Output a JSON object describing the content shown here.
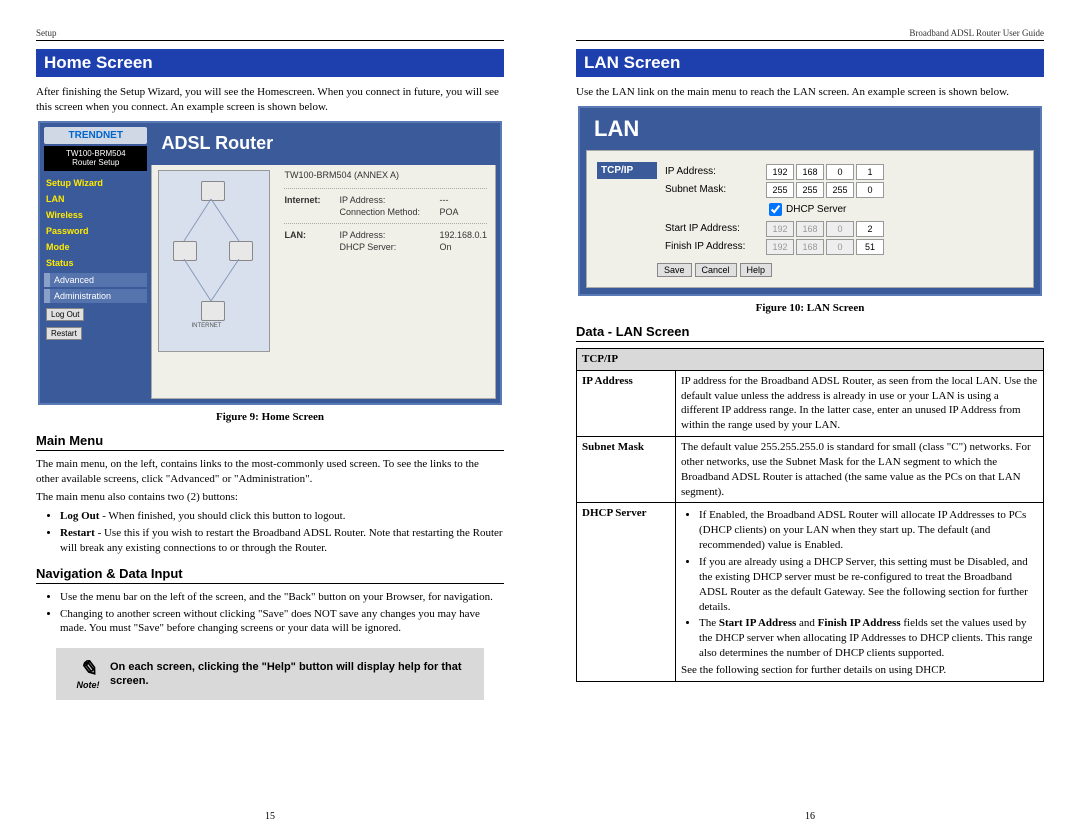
{
  "left": {
    "header": "Setup",
    "pageNum": "15",
    "banner": "Home Screen",
    "intro": "After finishing the Setup Wizard, you will see the Homescreen. When you connect in future, you will see this screen when you connect. An example screen is shown below.",
    "caption": "Figure 9: Home Screen",
    "ss1": {
      "brand": "TRENDNET",
      "model": "TW100-BRM504",
      "modelSub": "Router Setup",
      "nav": [
        "Setup Wizard",
        "LAN",
        "Wireless",
        "Password",
        "Mode",
        "Status"
      ],
      "groups": [
        "Advanced",
        "Administration"
      ],
      "logout": "Log Out",
      "restart": "Restart",
      "title": "ADSL Router",
      "deviceLine": "TW100-BRM504 (ANNEX A)",
      "rows": [
        {
          "g": "Internet:",
          "l": "IP Address:",
          "v": "---"
        },
        {
          "g": "",
          "l": "Connection Method:",
          "v": "POA"
        },
        {
          "g": "LAN:",
          "l": "IP Address:",
          "v": "192.168.0.1"
        },
        {
          "g": "",
          "l": "DHCP Server:",
          "v": "On"
        }
      ],
      "internetLabel": "INTERNET"
    },
    "mainMenu": {
      "heading": "Main Menu",
      "p1": "The main menu, on the left, contains links to the most-commonly used screen. To see the links to the other available screens, click \"Advanced\" or \"Administration\".",
      "p2": "The main menu also contains two (2) buttons:",
      "bullets": [
        {
          "b": "Log Out",
          "t": " - When finished, you should click this button to logout."
        },
        {
          "b": "Restart",
          "t": " - Use this if you wish to restart the Broadband ADSL Router. Note that restarting the Router will break any existing connections to or through the Router."
        }
      ]
    },
    "nav": {
      "heading": "Navigation & Data Input",
      "bullets": [
        "Use the menu bar on the left of the screen, and the \"Back\" button on your Browser, for navigation.",
        "Changing to another screen without clicking \"Save\" does NOT save any changes you may have made. You must \"Save\" before changing screens or your data will be ignored."
      ]
    },
    "note": {
      "label": "Note!",
      "text": "On each screen, clicking the \"Help\" button will display help for that screen."
    }
  },
  "right": {
    "header": "Broadband ADSL Router User Guide",
    "pageNum": "16",
    "banner": "LAN Screen",
    "intro": "Use the LAN link on the main menu to reach the LAN screen. An example screen is shown below.",
    "caption": "Figure 10: LAN Screen",
    "ss2": {
      "title": "LAN",
      "section": "TCP/IP",
      "ipLabel": "IP Address:",
      "ip": [
        "192",
        "168",
        "0",
        "1"
      ],
      "maskLabel": "Subnet Mask:",
      "mask": [
        "255",
        "255",
        "255",
        "0"
      ],
      "dhcpLabel": "DHCP Server",
      "startLabel": "Start IP Address:",
      "start": [
        "192",
        "168",
        "0",
        "2"
      ],
      "finishLabel": "Finish IP Address:",
      "finish": [
        "192",
        "168",
        "0",
        "51"
      ],
      "buttons": [
        "Save",
        "Cancel",
        "Help"
      ]
    },
    "dataHeading": "Data - LAN Screen",
    "table": {
      "groupHeader": "TCP/IP",
      "rows": [
        {
          "field": "IP Address",
          "text": "IP address for the Broadband ADSL Router, as seen from the local LAN. Use the default value unless the address is already in use or your LAN is using a different IP address range. In the latter case, enter an unused IP Address from within the range used by your LAN."
        },
        {
          "field": "Subnet Mask",
          "text": "The default value 255.255.255.0 is standard for small (class \"C\") networks. For other networks, use the Subnet Mask for the LAN segment to which the Broadband ADSL Router is attached (the same value as the PCs on that LAN segment)."
        },
        {
          "field": "DHCP Server",
          "bullets": [
            "If Enabled, the Broadband ADSL Router will allocate IP Addresses to PCs (DHCP clients) on your LAN when they start up. The default (and recommended) value is Enabled.",
            "If you are already using a DHCP Server, this setting must be Disabled, and the existing DHCP server must be re-configured to treat the Broadband ADSL Router as the default Gateway. See the following section for further details.",
            "The <b>Start IP Address</b> and <b>Finish IP Address</b> fields set the values used by the DHCP server when allocating IP Addresses to DHCP clients. This range also determines the number of DHCP clients supported."
          ],
          "footer": "See the following section for further details on using DHCP."
        }
      ]
    }
  }
}
